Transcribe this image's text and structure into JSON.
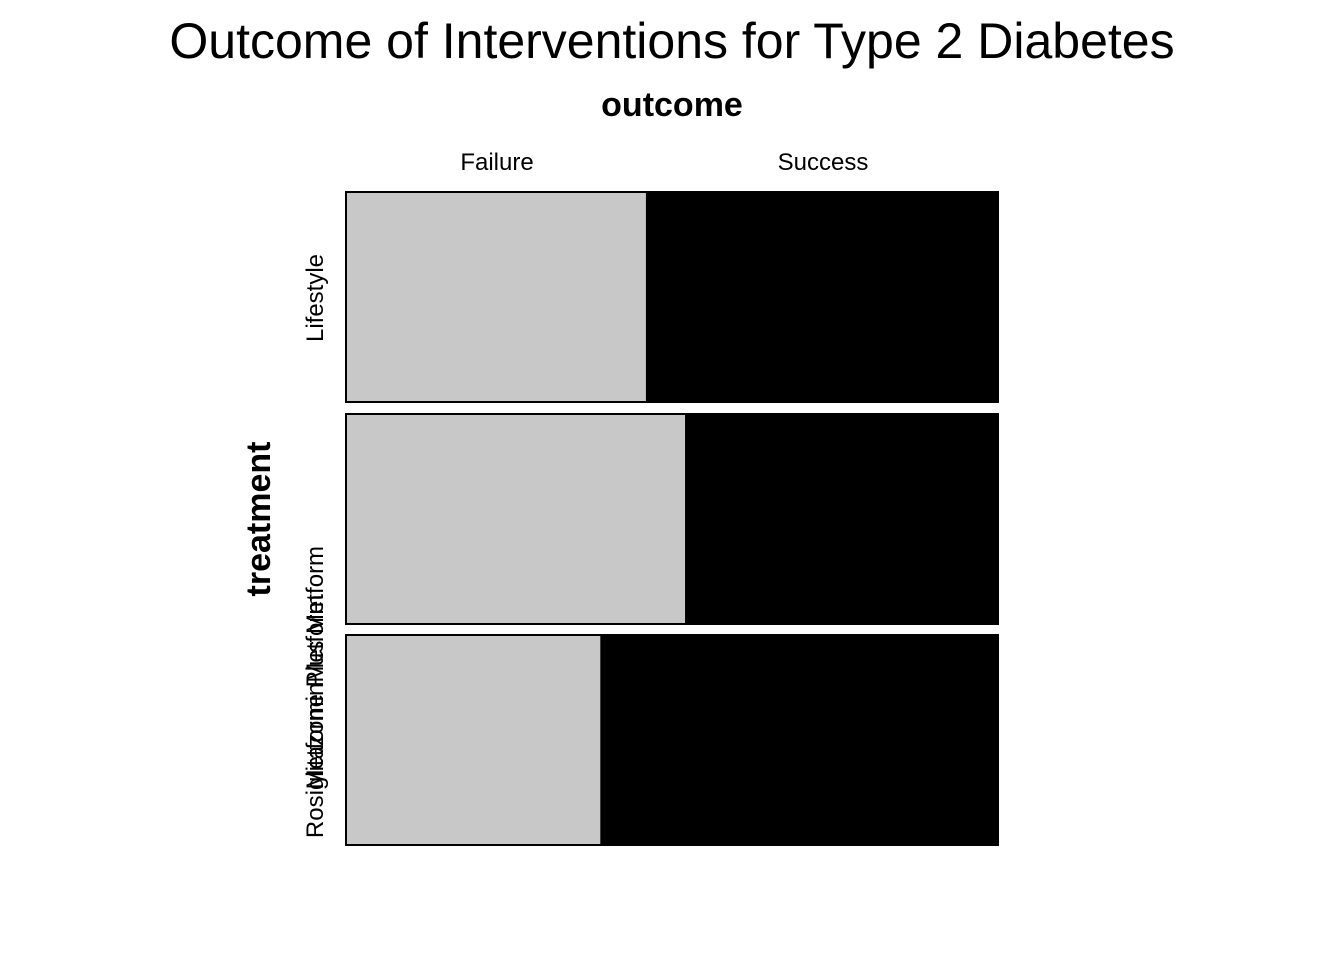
{
  "chart_data": {
    "type": "mosaic",
    "title": "Outcome of Interventions for Type 2 Diabetes",
    "column_variable": "outcome",
    "row_variable": "treatment",
    "columns": [
      "Failure",
      "Success"
    ],
    "rows": [
      {
        "label": "Lifestyle",
        "failure_proportion": 0.46,
        "success_proportion": 0.54
      },
      {
        "label": "MetforminMetform",
        "failure_proportion": 0.52,
        "success_proportion": 0.48
      },
      {
        "label": "Rosiglitazone Plus Metform",
        "failure_proportion": 0.39,
        "success_proportion": 0.61
      }
    ],
    "colors": {
      "Failure": "#c8c8c8",
      "Success": "#000000"
    }
  }
}
